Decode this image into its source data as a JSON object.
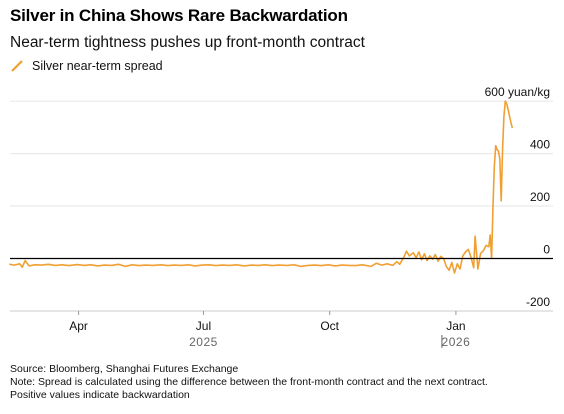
{
  "header": {
    "title": "Silver in China Shows Rare Backwardation",
    "subtitle": "Near-term tightness pushes up front-month contract"
  },
  "footer": {
    "source": "Source: Bloomberg, Shanghai Futures Exchange",
    "note_line1": "Note: Spread is calculated using the difference between the front-month contract and the next contract.",
    "note_line2": "Positive values indicate backwardation"
  },
  "colors": {
    "series": "#f0a032",
    "grid": "#e6e6e6",
    "zero_line": "#000000",
    "text": "#111111"
  },
  "chart_data": {
    "type": "line",
    "title": "Silver in China Shows Rare Backwardation",
    "subtitle": "Near-term tightness pushes up front-month contract",
    "ylabel_unit": "yuan/kg",
    "ylim": [
      -200,
      650
    ],
    "yticks": [
      -200,
      0,
      200,
      400,
      600
    ],
    "ytick_labels": [
      "-200",
      "0",
      "200",
      "400",
      "600 yuan/kg"
    ],
    "xlim": [
      "2025-02-10",
      "2026-02-24"
    ],
    "xticks": [
      {
        "date": "2025-04-01",
        "label": "Apr"
      },
      {
        "date": "2025-07-01",
        "label": "Jul"
      },
      {
        "date": "2025-10-01",
        "label": "Oct"
      },
      {
        "date": "2026-01-01",
        "label": "Jan"
      }
    ],
    "year_labels": [
      {
        "date": "2025-07-01",
        "label": "2025"
      },
      {
        "date": "2026-01-01",
        "label": "2026"
      }
    ],
    "year_divider": "2026-01-01",
    "grid": true,
    "legend_position": "top-left",
    "series": [
      {
        "name": "Silver near-term spread",
        "color": "#f0a032",
        "points": [
          [
            "2025-02-10",
            -22
          ],
          [
            "2025-02-13",
            -25
          ],
          [
            "2025-02-17",
            -20
          ],
          [
            "2025-02-19",
            -33
          ],
          [
            "2025-02-21",
            -8
          ],
          [
            "2025-02-24",
            -28
          ],
          [
            "2025-02-28",
            -24
          ],
          [
            "2025-03-05",
            -25
          ],
          [
            "2025-03-10",
            -22
          ],
          [
            "2025-03-15",
            -26
          ],
          [
            "2025-03-20",
            -24
          ],
          [
            "2025-03-25",
            -27
          ],
          [
            "2025-03-31",
            -23
          ],
          [
            "2025-04-05",
            -26
          ],
          [
            "2025-04-10",
            -24
          ],
          [
            "2025-04-15",
            -28
          ],
          [
            "2025-04-20",
            -25
          ],
          [
            "2025-04-25",
            -26
          ],
          [
            "2025-04-30",
            -22
          ],
          [
            "2025-05-05",
            -30
          ],
          [
            "2025-05-10",
            -24
          ],
          [
            "2025-05-15",
            -27
          ],
          [
            "2025-05-20",
            -25
          ],
          [
            "2025-05-25",
            -26
          ],
          [
            "2025-05-31",
            -24
          ],
          [
            "2025-06-05",
            -27
          ],
          [
            "2025-06-10",
            -25
          ],
          [
            "2025-06-15",
            -26
          ],
          [
            "2025-06-20",
            -24
          ],
          [
            "2025-06-25",
            -28
          ],
          [
            "2025-06-30",
            -25
          ],
          [
            "2025-07-05",
            -24
          ],
          [
            "2025-07-10",
            -27
          ],
          [
            "2025-07-15",
            -25
          ],
          [
            "2025-07-20",
            -26
          ],
          [
            "2025-07-25",
            -24
          ],
          [
            "2025-07-31",
            -28
          ],
          [
            "2025-08-05",
            -25
          ],
          [
            "2025-08-10",
            -26
          ],
          [
            "2025-08-15",
            -24
          ],
          [
            "2025-08-20",
            -27
          ],
          [
            "2025-08-25",
            -25
          ],
          [
            "2025-08-31",
            -26
          ],
          [
            "2025-09-05",
            -24
          ],
          [
            "2025-09-10",
            -30
          ],
          [
            "2025-09-15",
            -26
          ],
          [
            "2025-09-20",
            -25
          ],
          [
            "2025-09-25",
            -27
          ],
          [
            "2025-09-30",
            -24
          ],
          [
            "2025-10-05",
            -28
          ],
          [
            "2025-10-10",
            -25
          ],
          [
            "2025-10-15",
            -26
          ],
          [
            "2025-10-20",
            -27
          ],
          [
            "2025-10-25",
            -24
          ],
          [
            "2025-10-31",
            -30
          ],
          [
            "2025-11-04",
            -18
          ],
          [
            "2025-11-08",
            -25
          ],
          [
            "2025-11-12",
            -20
          ],
          [
            "2025-11-16",
            -26
          ],
          [
            "2025-11-19",
            -12
          ],
          [
            "2025-11-21",
            -22
          ],
          [
            "2025-11-24",
            5
          ],
          [
            "2025-11-26",
            28
          ],
          [
            "2025-11-28",
            10
          ],
          [
            "2025-12-01",
            22
          ],
          [
            "2025-12-03",
            2
          ],
          [
            "2025-12-05",
            25
          ],
          [
            "2025-12-07",
            -5
          ],
          [
            "2025-12-09",
            18
          ],
          [
            "2025-12-11",
            -8
          ],
          [
            "2025-12-13",
            10
          ],
          [
            "2025-12-15",
            -2
          ],
          [
            "2025-12-17",
            15
          ],
          [
            "2025-12-19",
            -10
          ],
          [
            "2025-12-21",
            8
          ],
          [
            "2025-12-23",
            0
          ],
          [
            "2025-12-25",
            -30
          ],
          [
            "2025-12-27",
            -45
          ],
          [
            "2025-12-29",
            -15
          ],
          [
            "2025-12-31",
            -55
          ],
          [
            "2026-01-02",
            -20
          ],
          [
            "2026-01-04",
            -40
          ],
          [
            "2026-01-06",
            10
          ],
          [
            "2026-01-08",
            25
          ],
          [
            "2026-01-10",
            35
          ],
          [
            "2026-01-12",
            5
          ],
          [
            "2026-01-14",
            -35
          ],
          [
            "2026-01-15",
            85
          ],
          [
            "2026-01-17",
            -40
          ],
          [
            "2026-01-19",
            20
          ],
          [
            "2026-01-21",
            30
          ],
          [
            "2026-01-23",
            50
          ],
          [
            "2026-01-25",
            45
          ],
          [
            "2026-01-26",
            90
          ],
          [
            "2026-01-27",
            0
          ],
          [
            "2026-01-28",
            200
          ],
          [
            "2026-01-29",
            350
          ],
          [
            "2026-01-30",
            430
          ],
          [
            "2026-01-31",
            415
          ],
          [
            "2026-02-01",
            410
          ],
          [
            "2026-02-02",
            380
          ],
          [
            "2026-02-03",
            220
          ],
          [
            "2026-02-04",
            420
          ],
          [
            "2026-02-05",
            540
          ],
          [
            "2026-02-06",
            600
          ],
          [
            "2026-02-07",
            590
          ],
          [
            "2026-02-08",
            570
          ],
          [
            "2026-02-09",
            545
          ],
          [
            "2026-02-10",
            520
          ],
          [
            "2026-02-11",
            500
          ]
        ]
      }
    ]
  }
}
